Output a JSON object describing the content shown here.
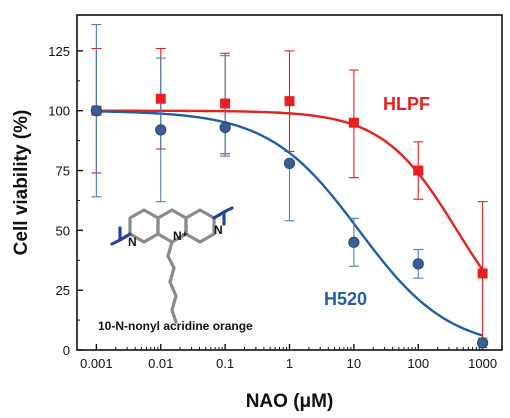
{
  "chart_data": {
    "type": "scatter",
    "xlabel": "NAO (μM)",
    "ylabel": "Cell viability (%)",
    "x_scale": "log",
    "xlim": [
      0.0005,
      2000
    ],
    "ylim": [
      0,
      140
    ],
    "x_ticks": [
      0.001,
      0.01,
      0.1,
      1,
      10,
      100,
      1000
    ],
    "x_tick_labels": [
      "0.001",
      "0.01",
      "0.1",
      "1",
      "10",
      "100",
      "1000"
    ],
    "y_ticks": [
      0,
      25,
      50,
      75,
      100,
      125
    ],
    "y_tick_labels": [
      "0",
      "25",
      "50",
      "75",
      "100",
      "125"
    ],
    "grid": false,
    "series": [
      {
        "name": "HLPF",
        "color": "#e8201d",
        "marker": "square",
        "x": [
          0.001,
          0.01,
          0.1,
          1,
          10,
          100,
          1000
        ],
        "y": [
          100,
          105,
          103,
          104,
          95,
          75,
          32
        ],
        "err_low": [
          26,
          21,
          21,
          21,
          23,
          12,
          32
        ],
        "err_high": [
          26,
          21,
          21,
          21,
          22,
          12,
          30
        ],
        "fit": {
          "top": 100,
          "bottom": 0,
          "ic50": 400,
          "hill": 0.75
        }
      },
      {
        "name": "H520",
        "color": "#1f5fa6",
        "marker": "circle",
        "x": [
          0.001,
          0.01,
          0.1,
          1,
          10,
          100,
          1000
        ],
        "y": [
          100,
          92,
          93,
          78,
          45,
          36,
          3
        ],
        "err_low": [
          36,
          30,
          12,
          24,
          10,
          6,
          2
        ],
        "err_high": [
          36,
          30,
          30,
          0,
          10,
          6,
          2
        ],
        "fit": {
          "top": 100,
          "bottom": 0,
          "ic50": 12,
          "hill": 0.62
        }
      }
    ],
    "annotations": {
      "molecule_name": "10-N-nonyl acridine orange",
      "atom_n_left": "N",
      "atom_n_plus": "N⁺",
      "atom_n_right": "N"
    }
  }
}
